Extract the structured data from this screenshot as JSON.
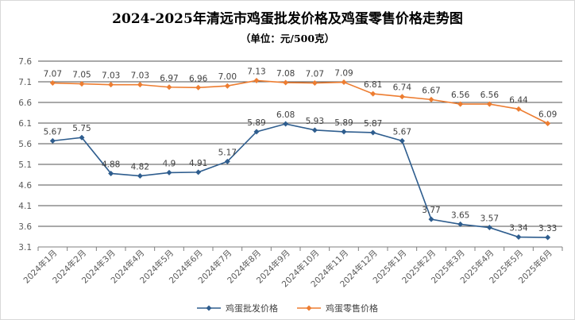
{
  "chart_data": {
    "type": "line",
    "title": "2024-2025年清远市鸡蛋批发价格及鸡蛋零售价格走势图",
    "subtitle": "（单位：元/500克）",
    "categories": [
      "2024年1月",
      "2024年2月",
      "2024年3月",
      "2024年4月",
      "2024年5月",
      "2024年6月",
      "2024年7月",
      "2024年8月",
      "2024年9月",
      "2024年10月",
      "2024年11月",
      "2024年12月",
      "2025年1月",
      "2025年2月",
      "2025年3月",
      "2025年4月",
      "2025年5月",
      "2025年6月"
    ],
    "ylim": [
      3.1,
      7.6
    ],
    "yticks": [
      "3.1",
      "3.6",
      "4.1",
      "4.6",
      "5.1",
      "5.6",
      "6.1",
      "6.6",
      "7.1",
      "7.6"
    ],
    "grid": true,
    "legend_position": "bottom",
    "series": [
      {
        "name": "鸡蛋批发价格",
        "color": "#2e5d8e",
        "marker": "diamond",
        "values": [
          5.67,
          5.75,
          4.88,
          4.82,
          4.9,
          4.91,
          5.17,
          5.89,
          6.08,
          5.93,
          5.89,
          5.87,
          5.67,
          3.77,
          3.65,
          3.57,
          3.34,
          3.33
        ],
        "labels": [
          "5.67",
          "5.75",
          "4.88",
          "4.82",
          "4.9",
          "4.91",
          "5.17",
          "5.89",
          "6.08",
          "5.93",
          "5.89",
          "5.87",
          "5.67",
          "3.77",
          "3.65",
          "3.57",
          "3.34",
          "3.33"
        ]
      },
      {
        "name": "鸡蛋零售价格",
        "color": "#ed7d31",
        "marker": "diamond",
        "values": [
          7.07,
          7.05,
          7.03,
          7.03,
          6.97,
          6.96,
          7.0,
          7.13,
          7.08,
          7.07,
          7.09,
          6.81,
          6.74,
          6.67,
          6.56,
          6.56,
          6.44,
          6.09
        ],
        "labels": [
          "7.07",
          "7.05",
          "7.03",
          "7.03",
          "6.97",
          "6.96",
          "7.00",
          "7.13",
          "7.08",
          "7.07",
          "7.09",
          "6.81",
          "6.74",
          "6.67",
          "6.56",
          "6.56",
          "6.44",
          "6.09"
        ]
      }
    ]
  }
}
